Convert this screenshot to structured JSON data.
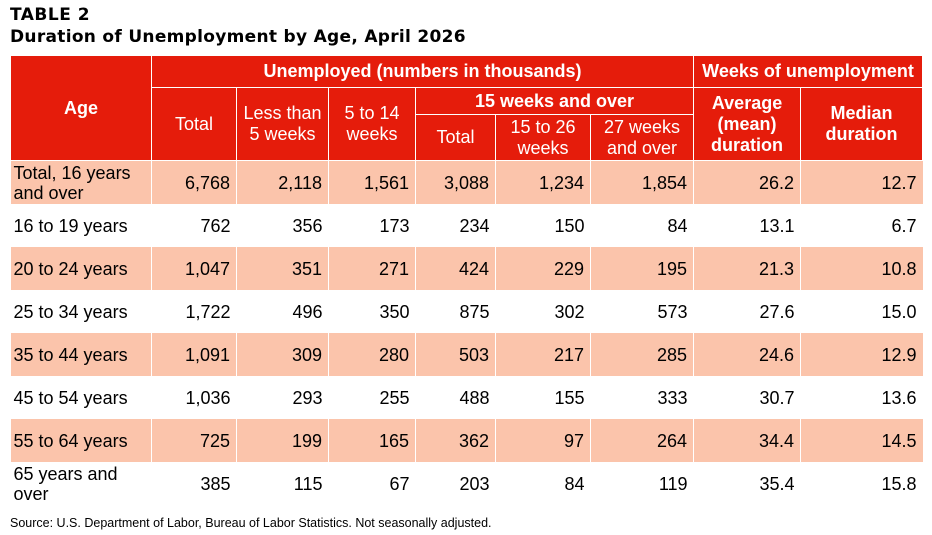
{
  "title": {
    "label": "TABLE 2",
    "text": "Duration of Unemployment by Age, April 2026"
  },
  "headers": {
    "age": "Age",
    "unemployed_group": "Unemployed (numbers in thousands)",
    "weeks_group": "Weeks of unemployment",
    "total": "Total",
    "less_than_5": "Less than 5 weeks",
    "five_to_14": "5 to 14 weeks",
    "fifteen_over_group": "15 weeks and over",
    "total_15": "Total",
    "fifteen_to_26": "15 to 26 weeks",
    "twentyseven_over": "27 weeks and over",
    "average": "Average (mean) duration",
    "median": "Median duration"
  },
  "rows": [
    {
      "age": "Total, 16 years and over",
      "total": "6,768",
      "lt5": "2,118",
      "w5_14": "1,561",
      "total15": "3,088",
      "w15_26": "1,234",
      "w27": "1,854",
      "avg": "26.2",
      "median": "12.7"
    },
    {
      "age": "16 to 19 years",
      "total": "762",
      "lt5": "356",
      "w5_14": "173",
      "total15": "234",
      "w15_26": "150",
      "w27": "84",
      "avg": "13.1",
      "median": "6.7"
    },
    {
      "age": "20 to 24 years",
      "total": "1,047",
      "lt5": "351",
      "w5_14": "271",
      "total15": "424",
      "w15_26": "229",
      "w27": "195",
      "avg": "21.3",
      "median": "10.8"
    },
    {
      "age": "25 to 34 years",
      "total": "1,722",
      "lt5": "496",
      "w5_14": "350",
      "total15": "875",
      "w15_26": "302",
      "w27": "573",
      "avg": "27.6",
      "median": "15.0"
    },
    {
      "age": "35 to 44 years",
      "total": "1,091",
      "lt5": "309",
      "w5_14": "280",
      "total15": "503",
      "w15_26": "217",
      "w27": "285",
      "avg": "24.6",
      "median": "12.9"
    },
    {
      "age": "45 to 54 years",
      "total": "1,036",
      "lt5": "293",
      "w5_14": "255",
      "total15": "488",
      "w15_26": "155",
      "w27": "333",
      "avg": "30.7",
      "median": "13.6"
    },
    {
      "age": "55 to 64 years",
      "total": "725",
      "lt5": "199",
      "w5_14": "165",
      "total15": "362",
      "w15_26": "97",
      "w27": "264",
      "avg": "34.4",
      "median": "14.5"
    },
    {
      "age": "65 years and over",
      "total": "385",
      "lt5": "115",
      "w5_14": "67",
      "total15": "203",
      "w15_26": "84",
      "w27": "119",
      "avg": "35.4",
      "median": "15.8"
    }
  ],
  "source": "Source: U.S. Department of Labor, Bureau of Labor Statistics. Not seasonally adjusted."
}
